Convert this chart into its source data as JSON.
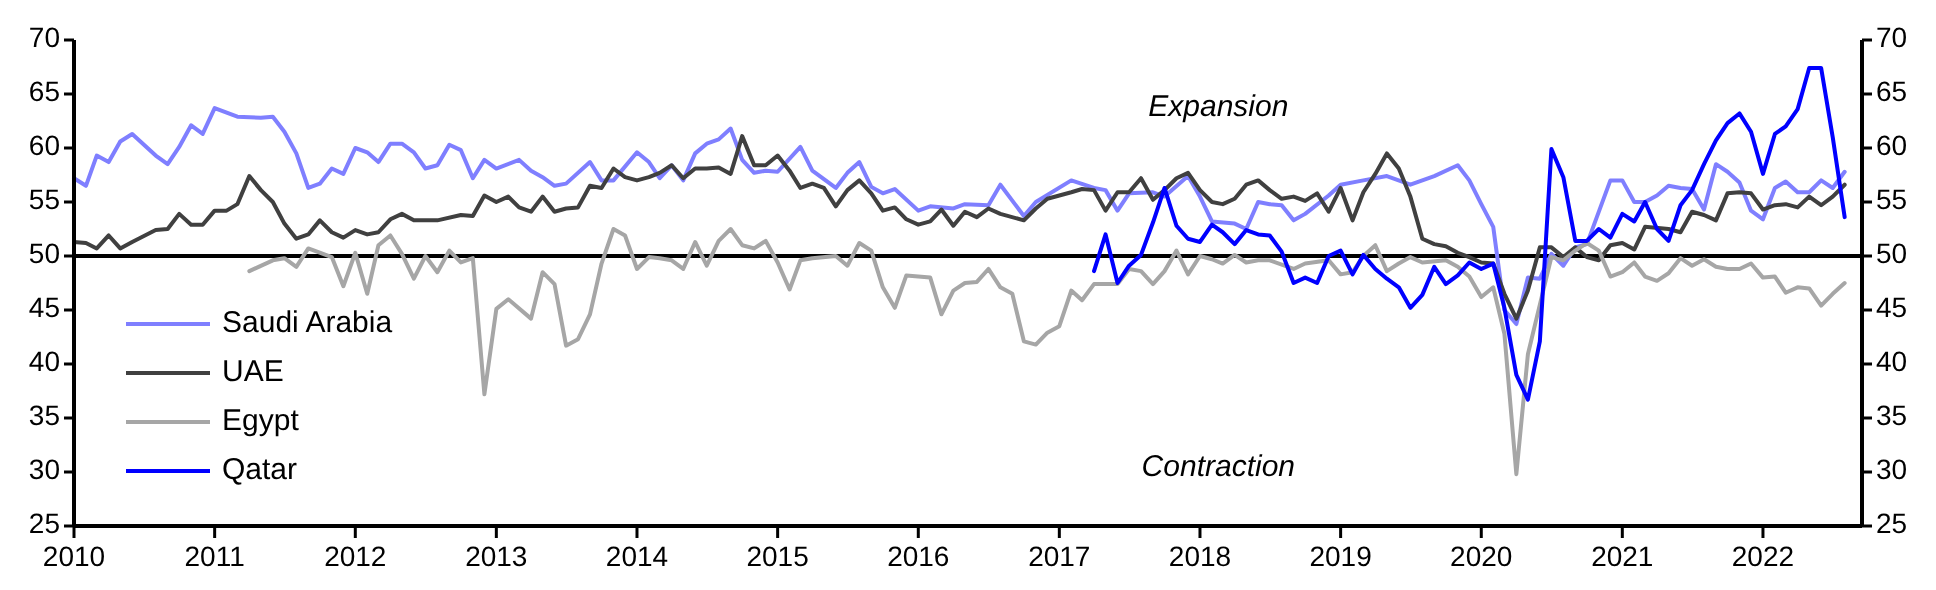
{
  "chart_data": {
    "type": "line",
    "ylim": [
      25,
      70
    ],
    "yticks": [
      25,
      30,
      35,
      40,
      45,
      50,
      55,
      60,
      65,
      70
    ],
    "y2lim": [
      25,
      70
    ],
    "y2ticks": [
      25,
      30,
      35,
      40,
      45,
      50,
      55,
      60,
      65,
      70
    ],
    "xlim": [
      "2010-01-01",
      "2022-09-15"
    ],
    "xticks": [
      "2010",
      "2011",
      "2012",
      "2013",
      "2014",
      "2015",
      "2016",
      "2017",
      "2018",
      "2019",
      "2020",
      "2021",
      "2022"
    ],
    "legend": "bottom left",
    "line_style": "solid",
    "marker": "none",
    "grid": false,
    "annotations": [
      "Expansion",
      "Contraction"
    ],
    "ref_lines": [
      {
        "axis": "y",
        "value": 50,
        "color": "#000000"
      }
    ],
    "series": [
      {
        "name": "Saudi Arabia",
        "color": "#7f7fff",
        "x": [
          "2010-01",
          "2010-02",
          "2010-03",
          "2010-04",
          "2010-05",
          "2010-06",
          "2010-08",
          "2010-09",
          "2010-10",
          "2010-11",
          "2010-12",
          "2011-01",
          "2011-03",
          "2011-05",
          "2011-06",
          "2011-07",
          "2011-08",
          "2011-09",
          "2011-10",
          "2011-11",
          "2011-12",
          "2012-01",
          "2012-02",
          "2012-03",
          "2012-04",
          "2012-05",
          "2012-06",
          "2012-07",
          "2012-08",
          "2012-09",
          "2012-10",
          "2012-11",
          "2012-12",
          "2013-01",
          "2013-03",
          "2013-04",
          "2013-05",
          "2013-06",
          "2013-07",
          "2013-09",
          "2013-10",
          "2013-11",
          "2014-01",
          "2014-02",
          "2014-03",
          "2014-04",
          "2014-05",
          "2014-06",
          "2014-07",
          "2014-08",
          "2014-09",
          "2014-10",
          "2014-11",
          "2014-12",
          "2015-01",
          "2015-03",
          "2015-04",
          "2015-06",
          "2015-07",
          "2015-08",
          "2015-09",
          "2015-10",
          "2015-11",
          "2016-01",
          "2016-02",
          "2016-04",
          "2016-05",
          "2016-07",
          "2016-08",
          "2016-10",
          "2016-11",
          "2017-02",
          "2017-04",
          "2017-05",
          "2017-06",
          "2017-07",
          "2017-09",
          "2017-10",
          "2017-12",
          "2018-01",
          "2018-02",
          "2018-04",
          "2018-05",
          "2018-06",
          "2018-07",
          "2018-08",
          "2018-09",
          "2018-10",
          "2018-12",
          "2019-01",
          "2019-03",
          "2019-05",
          "2019-07",
          "2019-09",
          "2019-11",
          "2019-12",
          "2020-01",
          "2020-02",
          "2020-03",
          "2020-04",
          "2020-05",
          "2020-06",
          "2020-07",
          "2020-08",
          "2020-09",
          "2020-10",
          "2020-12",
          "2021-01",
          "2021-02",
          "2021-03",
          "2021-04",
          "2021-05",
          "2021-06",
          "2021-07",
          "2021-08",
          "2021-09",
          "2021-10",
          "2021-11",
          "2021-12",
          "2022-01",
          "2022-02",
          "2022-03",
          "2022-04",
          "2022-05",
          "2022-06",
          "2022-07",
          "2022-08"
        ],
        "values": [
          57.2,
          56.5,
          59.3,
          58.7,
          60.6,
          61.3,
          59.3,
          58.5,
          60.1,
          62.1,
          61.3,
          63.7,
          62.9,
          62.8,
          62.9,
          61.5,
          59.5,
          56.3,
          56.7,
          58.1,
          57.6,
          60.0,
          59.6,
          58.7,
          60.4,
          60.4,
          59.6,
          58.1,
          58.4,
          60.3,
          59.8,
          57.2,
          58.9,
          58.1,
          58.9,
          57.9,
          57.3,
          56.5,
          56.7,
          58.7,
          57.0,
          57.0,
          59.6,
          58.7,
          57.2,
          58.4,
          57.0,
          59.5,
          60.4,
          60.8,
          61.8,
          58.9,
          57.7,
          57.9,
          57.8,
          60.1,
          57.9,
          56.3,
          57.7,
          58.7,
          56.4,
          55.8,
          56.2,
          54.2,
          54.6,
          54.4,
          54.8,
          54.7,
          56.6,
          53.7,
          55.0,
          57.0,
          56.3,
          56.1,
          54.2,
          55.8,
          55.9,
          55.5,
          57.4,
          55.5,
          53.2,
          53.0,
          52.5,
          55.0,
          54.8,
          54.7,
          53.3,
          53.9,
          55.6,
          56.6,
          57.0,
          57.4,
          56.6,
          57.4,
          58.4,
          57.0,
          54.8,
          52.7,
          45.0,
          43.7,
          48.0,
          47.9,
          50.2,
          49.1,
          50.8,
          51.1,
          57.0,
          57.0,
          55.0,
          55.0,
          55.6,
          56.5,
          56.3,
          56.2,
          54.3,
          58.5,
          57.8,
          56.8,
          54.2,
          53.4,
          56.3,
          56.9,
          55.9,
          55.9,
          57.0,
          56.3,
          57.8
        ]
      },
      {
        "name": "UAE",
        "color": "#404040",
        "x": [
          "2010-01",
          "2010-02",
          "2010-03",
          "2010-04",
          "2010-05",
          "2010-06",
          "2010-08",
          "2010-09",
          "2010-10",
          "2010-11",
          "2010-12",
          "2011-01",
          "2011-02",
          "2011-03",
          "2011-04",
          "2011-05",
          "2011-06",
          "2011-07",
          "2011-08",
          "2011-09",
          "2011-10",
          "2011-11",
          "2011-12",
          "2012-01",
          "2012-02",
          "2012-03",
          "2012-04",
          "2012-05",
          "2012-06",
          "2012-08",
          "2012-10",
          "2012-11",
          "2012-12",
          "2013-01",
          "2013-02",
          "2013-03",
          "2013-04",
          "2013-05",
          "2013-06",
          "2013-07",
          "2013-08",
          "2013-09",
          "2013-10",
          "2013-11",
          "2013-12",
          "2014-01",
          "2014-02",
          "2014-03",
          "2014-04",
          "2014-05",
          "2014-06",
          "2014-07",
          "2014-08",
          "2014-09",
          "2014-10",
          "2014-11",
          "2014-12",
          "2015-01",
          "2015-02",
          "2015-03",
          "2015-04",
          "2015-05",
          "2015-06",
          "2015-07",
          "2015-08",
          "2015-09",
          "2015-10",
          "2015-11",
          "2015-12",
          "2016-01",
          "2016-02",
          "2016-03",
          "2016-04",
          "2016-05",
          "2016-06",
          "2016-07",
          "2016-08",
          "2016-10",
          "2016-11",
          "2016-12",
          "2017-02",
          "2017-03",
          "2017-04",
          "2017-05",
          "2017-06",
          "2017-07",
          "2017-08",
          "2017-09",
          "2017-10",
          "2017-11",
          "2017-12",
          "2018-01",
          "2018-02",
          "2018-03",
          "2018-04",
          "2018-05",
          "2018-06",
          "2018-07",
          "2018-08",
          "2018-09",
          "2018-10",
          "2018-11",
          "2018-12",
          "2019-01",
          "2019-02",
          "2019-03",
          "2019-04",
          "2019-05",
          "2019-06",
          "2019-07",
          "2019-08",
          "2019-09",
          "2019-10",
          "2019-11",
          "2019-12",
          "2020-01",
          "2020-02",
          "2020-03",
          "2020-04",
          "2020-05",
          "2020-06",
          "2020-07",
          "2020-08",
          "2020-09",
          "2020-10",
          "2020-11",
          "2020-12",
          "2021-01",
          "2021-02",
          "2021-03",
          "2021-05",
          "2021-06",
          "2021-07",
          "2021-08",
          "2021-09",
          "2021-10",
          "2021-11",
          "2021-12",
          "2022-01",
          "2022-02",
          "2022-03",
          "2022-04",
          "2022-05",
          "2022-06",
          "2022-07",
          "2022-08"
        ],
        "values": [
          51.3,
          51.2,
          50.7,
          51.9,
          50.7,
          51.3,
          52.4,
          52.5,
          53.9,
          52.9,
          52.9,
          54.2,
          54.2,
          54.8,
          57.4,
          56.1,
          55.0,
          53.0,
          51.6,
          52.0,
          53.3,
          52.2,
          51.7,
          52.4,
          52.0,
          52.2,
          53.4,
          53.9,
          53.3,
          53.3,
          53.8,
          53.7,
          55.6,
          55.0,
          55.5,
          54.5,
          54.1,
          55.5,
          54.1,
          54.4,
          54.5,
          56.5,
          56.3,
          58.1,
          57.3,
          57.0,
          57.3,
          57.7,
          58.4,
          57.2,
          58.1,
          58.1,
          58.2,
          57.6,
          61.1,
          58.4,
          58.4,
          59.3,
          57.9,
          56.3,
          56.7,
          56.3,
          54.6,
          56.1,
          57.0,
          55.8,
          54.2,
          54.5,
          53.4,
          52.9,
          53.2,
          54.3,
          52.8,
          54.1,
          53.6,
          54.4,
          53.9,
          53.3,
          54.4,
          55.3,
          55.9,
          56.2,
          56.1,
          54.2,
          55.9,
          55.9,
          57.2,
          55.2,
          56.1,
          57.2,
          57.7,
          56.1,
          55.0,
          54.8,
          55.3,
          56.6,
          57.0,
          56.1,
          55.3,
          55.5,
          55.1,
          55.8,
          54.1,
          56.3,
          53.3,
          55.9,
          57.6,
          59.5,
          58.1,
          55.5,
          51.6,
          51.1,
          50.9,
          50.3,
          49.9,
          49.4,
          49.3,
          46.5,
          44.2,
          46.8,
          50.8,
          50.8,
          49.9,
          50.8,
          49.9,
          49.6,
          51.0,
          51.2,
          50.6,
          52.7,
          52.5,
          52.2,
          54.1,
          53.8,
          53.3,
          55.8,
          55.9,
          55.8,
          54.3,
          54.7,
          54.8,
          54.5,
          55.5,
          54.7,
          55.5,
          56.6
        ]
      },
      {
        "name": "Egypt",
        "color": "#a6a6a6",
        "x": [
          "2011-04",
          "2011-06",
          "2011-07",
          "2011-08",
          "2011-09",
          "2011-11",
          "2011-12",
          "2012-01",
          "2012-02",
          "2012-03",
          "2012-04",
          "2012-05",
          "2012-06",
          "2012-07",
          "2012-08",
          "2012-09",
          "2012-10",
          "2012-11",
          "2012-12",
          "2013-01",
          "2013-02",
          "2013-04",
          "2013-05",
          "2013-06",
          "2013-07",
          "2013-08",
          "2013-09",
          "2013-10",
          "2013-11",
          "2013-12",
          "2014-01",
          "2014-02",
          "2014-03",
          "2014-04",
          "2014-05",
          "2014-06",
          "2014-07",
          "2014-08",
          "2014-09",
          "2014-10",
          "2014-11",
          "2014-12",
          "2015-01",
          "2015-02",
          "2015-03",
          "2015-04",
          "2015-06",
          "2015-07",
          "2015-08",
          "2015-09",
          "2015-10",
          "2015-11",
          "2015-12",
          "2016-02",
          "2016-03",
          "2016-04",
          "2016-05",
          "2016-06",
          "2016-07",
          "2016-08",
          "2016-09",
          "2016-10",
          "2016-11",
          "2016-12",
          "2017-01",
          "2017-02",
          "2017-03",
          "2017-04",
          "2017-06",
          "2017-07",
          "2017-08",
          "2017-09",
          "2017-10",
          "2017-11",
          "2017-12",
          "2018-01",
          "2018-02",
          "2018-03",
          "2018-04",
          "2018-05",
          "2018-06",
          "2018-07",
          "2018-09",
          "2018-10",
          "2018-12",
          "2019-01",
          "2019-02",
          "2019-03",
          "2019-04",
          "2019-05",
          "2019-06",
          "2019-07",
          "2019-08",
          "2019-10",
          "2019-11",
          "2019-12",
          "2020-01",
          "2020-02",
          "2020-03",
          "2020-04",
          "2020-05",
          "2020-06",
          "2020-07",
          "2020-08",
          "2020-09",
          "2020-10",
          "2020-11",
          "2020-12",
          "2021-01",
          "2021-02",
          "2021-03",
          "2021-04",
          "2021-05",
          "2021-06",
          "2021-07",
          "2021-08",
          "2021-09",
          "2021-10",
          "2021-11",
          "2021-12",
          "2022-01",
          "2022-02",
          "2022-03",
          "2022-04",
          "2022-05",
          "2022-06",
          "2022-07",
          "2022-08"
        ],
        "values": [
          48.6,
          49.6,
          49.8,
          49.0,
          50.7,
          49.9,
          47.2,
          50.3,
          46.5,
          51.0,
          51.9,
          50.2,
          47.9,
          50.0,
          48.5,
          50.5,
          49.4,
          49.8,
          37.2,
          45.1,
          46.0,
          44.2,
          48.5,
          47.4,
          41.7,
          42.3,
          44.6,
          49.3,
          52.5,
          51.9,
          48.8,
          49.9,
          49.8,
          49.6,
          48.8,
          51.3,
          49.1,
          51.4,
          52.5,
          51.0,
          50.7,
          51.4,
          49.4,
          46.9,
          49.6,
          49.8,
          50.0,
          49.1,
          51.2,
          50.5,
          47.1,
          45.2,
          48.2,
          48.0,
          44.6,
          46.8,
          47.5,
          47.6,
          48.8,
          47.1,
          46.5,
          42.1,
          41.8,
          42.9,
          43.5,
          46.8,
          45.9,
          47.4,
          47.4,
          48.8,
          48.6,
          47.4,
          48.6,
          50.5,
          48.3,
          50.0,
          49.7,
          49.3,
          50.1,
          49.4,
          49.6,
          49.6,
          48.8,
          49.3,
          49.6,
          48.3,
          48.5,
          50.0,
          51.0,
          48.6,
          49.3,
          49.9,
          49.4,
          49.6,
          49.0,
          48.1,
          46.2,
          47.1,
          42.8,
          29.8,
          40.9,
          45.5,
          49.9,
          49.6,
          50.5,
          51.2,
          50.5,
          48.1,
          48.5,
          49.4,
          48.1,
          47.7,
          48.4,
          49.8,
          49.1,
          49.7,
          49.0,
          48.8,
          48.8,
          49.3,
          48.0,
          48.1,
          46.6,
          47.1,
          47.0,
          45.4,
          46.5,
          47.5
        ]
      },
      {
        "name": "Qatar",
        "color": "#0000ff",
        "x": [
          "2017-04",
          "2017-05",
          "2017-06",
          "2017-07",
          "2017-08",
          "2017-09",
          "2017-10",
          "2017-11",
          "2017-12",
          "2018-01",
          "2018-02",
          "2018-03",
          "2018-04",
          "2018-05",
          "2018-06",
          "2018-07",
          "2018-08",
          "2018-09",
          "2018-10",
          "2018-11",
          "2018-12",
          "2019-01",
          "2019-02",
          "2019-03",
          "2019-04",
          "2019-05",
          "2019-06",
          "2019-07",
          "2019-08",
          "2019-09",
          "2019-10",
          "2019-11",
          "2019-12",
          "2020-01",
          "2020-02",
          "2020-03",
          "2020-04",
          "2020-05",
          "2020-06",
          "2020-07",
          "2020-08",
          "2020-09",
          "2020-10",
          "2020-11",
          "2020-12",
          "2021-01",
          "2021-02",
          "2021-03",
          "2021-04",
          "2021-05",
          "2021-06",
          "2021-07",
          "2021-08",
          "2021-09",
          "2021-10",
          "2021-11",
          "2021-12",
          "2022-01",
          "2022-02",
          "2022-03",
          "2022-04",
          "2022-05",
          "2022-06",
          "2022-07",
          "2022-08"
        ],
        "values": [
          48.6,
          52.0,
          47.5,
          49.1,
          50.1,
          53.1,
          56.3,
          52.8,
          51.6,
          51.3,
          52.9,
          52.2,
          51.1,
          52.4,
          52.0,
          51.9,
          50.4,
          47.5,
          48.0,
          47.5,
          50.0,
          50.5,
          48.3,
          50.1,
          48.8,
          47.9,
          47.1,
          45.2,
          46.4,
          49.0,
          47.4,
          48.2,
          49.4,
          48.8,
          49.3,
          45.2,
          39.0,
          36.7,
          42.1,
          59.9,
          57.3,
          51.4,
          51.4,
          52.5,
          51.7,
          53.9,
          53.2,
          55.0,
          52.5,
          51.4,
          54.7,
          56.1,
          58.5,
          60.7,
          62.3,
          63.2,
          61.5,
          57.6,
          61.3,
          62.0,
          63.6,
          67.4,
          67.4,
          61.0,
          53.6
        ]
      }
    ]
  }
}
